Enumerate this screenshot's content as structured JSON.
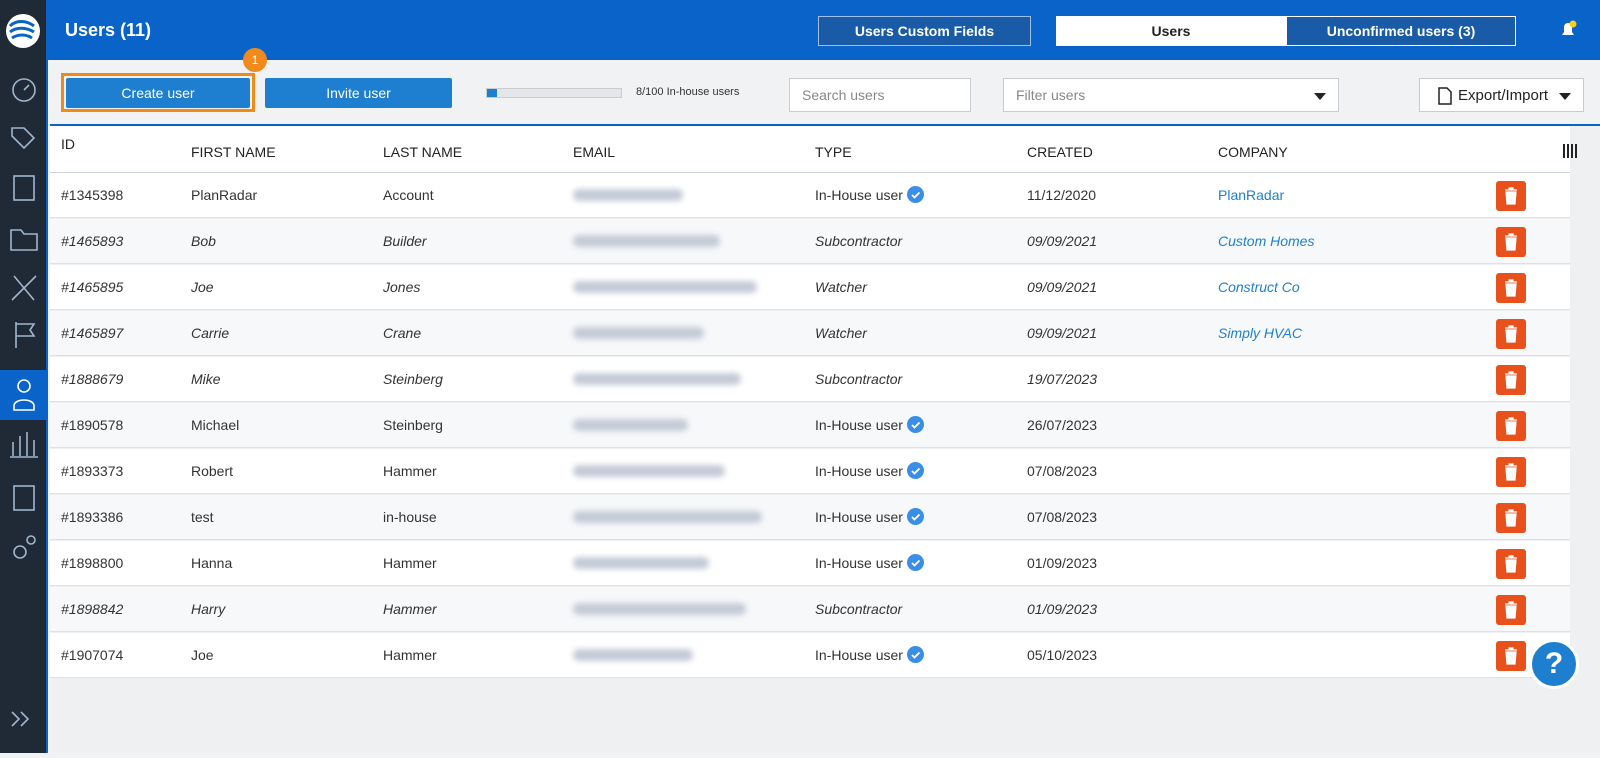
{
  "header": {
    "title": "Users (11)",
    "tabs": [
      "Users Custom Fields",
      "Users",
      "Unconfirmed users (3)"
    ]
  },
  "toolbar": {
    "badge": "1",
    "create": "Create user",
    "invite": "Invite user",
    "quota": "8/100 In-house users",
    "search_placeholder": "Search users",
    "filter_placeholder": "Filter users",
    "export": "Export/Import"
  },
  "table": {
    "columns": [
      "ID",
      "FIRST NAME",
      "LAST NAME",
      "EMAIL",
      "TYPE",
      "CREATED",
      "COMPANY"
    ],
    "rows": [
      {
        "id": "#1345398",
        "first_name": "PlanRadar",
        "last_name": "Account",
        "type": "In-House user",
        "created": "11/12/2020",
        "company": "PlanRadar",
        "verified": true,
        "italic": false
      },
      {
        "id": "#1465893",
        "first_name": "Bob",
        "last_name": "Builder",
        "type": "Subcontractor",
        "created": "09/09/2021",
        "company": "Custom Homes",
        "verified": false,
        "italic": true
      },
      {
        "id": "#1465895",
        "first_name": "Joe",
        "last_name": "Jones",
        "type": "Watcher",
        "created": "09/09/2021",
        "company": "Construct Co",
        "verified": false,
        "italic": true
      },
      {
        "id": "#1465897",
        "first_name": "Carrie",
        "last_name": "Crane",
        "type": "Watcher",
        "created": "09/09/2021",
        "company": "Simply HVAC",
        "verified": false,
        "italic": true
      },
      {
        "id": "#1888679",
        "first_name": "Mike",
        "last_name": "Steinberg",
        "type": "Subcontractor",
        "created": "19/07/2023",
        "verified": false,
        "italic": true
      },
      {
        "id": "#1890578",
        "first_name": "Michael",
        "last_name": "Steinberg",
        "type": "In-House user",
        "created": "26/07/2023",
        "verified": true,
        "italic": false
      },
      {
        "id": "#1893373",
        "first_name": "Robert",
        "last_name": "Hammer",
        "type": "In-House user",
        "created": "07/08/2023",
        "verified": true,
        "italic": false
      },
      {
        "id": "#1893386",
        "first_name": "test",
        "last_name": "in-house",
        "type": "In-House user",
        "created": "07/08/2023",
        "verified": true,
        "italic": false
      },
      {
        "id": "#1898800",
        "first_name": "Hanna",
        "last_name": "Hammer",
        "type": "In-House user",
        "created": "01/09/2023",
        "verified": true,
        "italic": false
      },
      {
        "id": "#1898842",
        "first_name": "Harry",
        "last_name": "Hammer",
        "type": "Subcontractor",
        "created": "01/09/2023",
        "verified": false,
        "italic": true
      },
      {
        "id": "#1907074",
        "first_name": "Joe",
        "last_name": "Hammer",
        "type": "In-House user",
        "created": "05/10/2023",
        "verified": true,
        "italic": false
      }
    ]
  }
}
